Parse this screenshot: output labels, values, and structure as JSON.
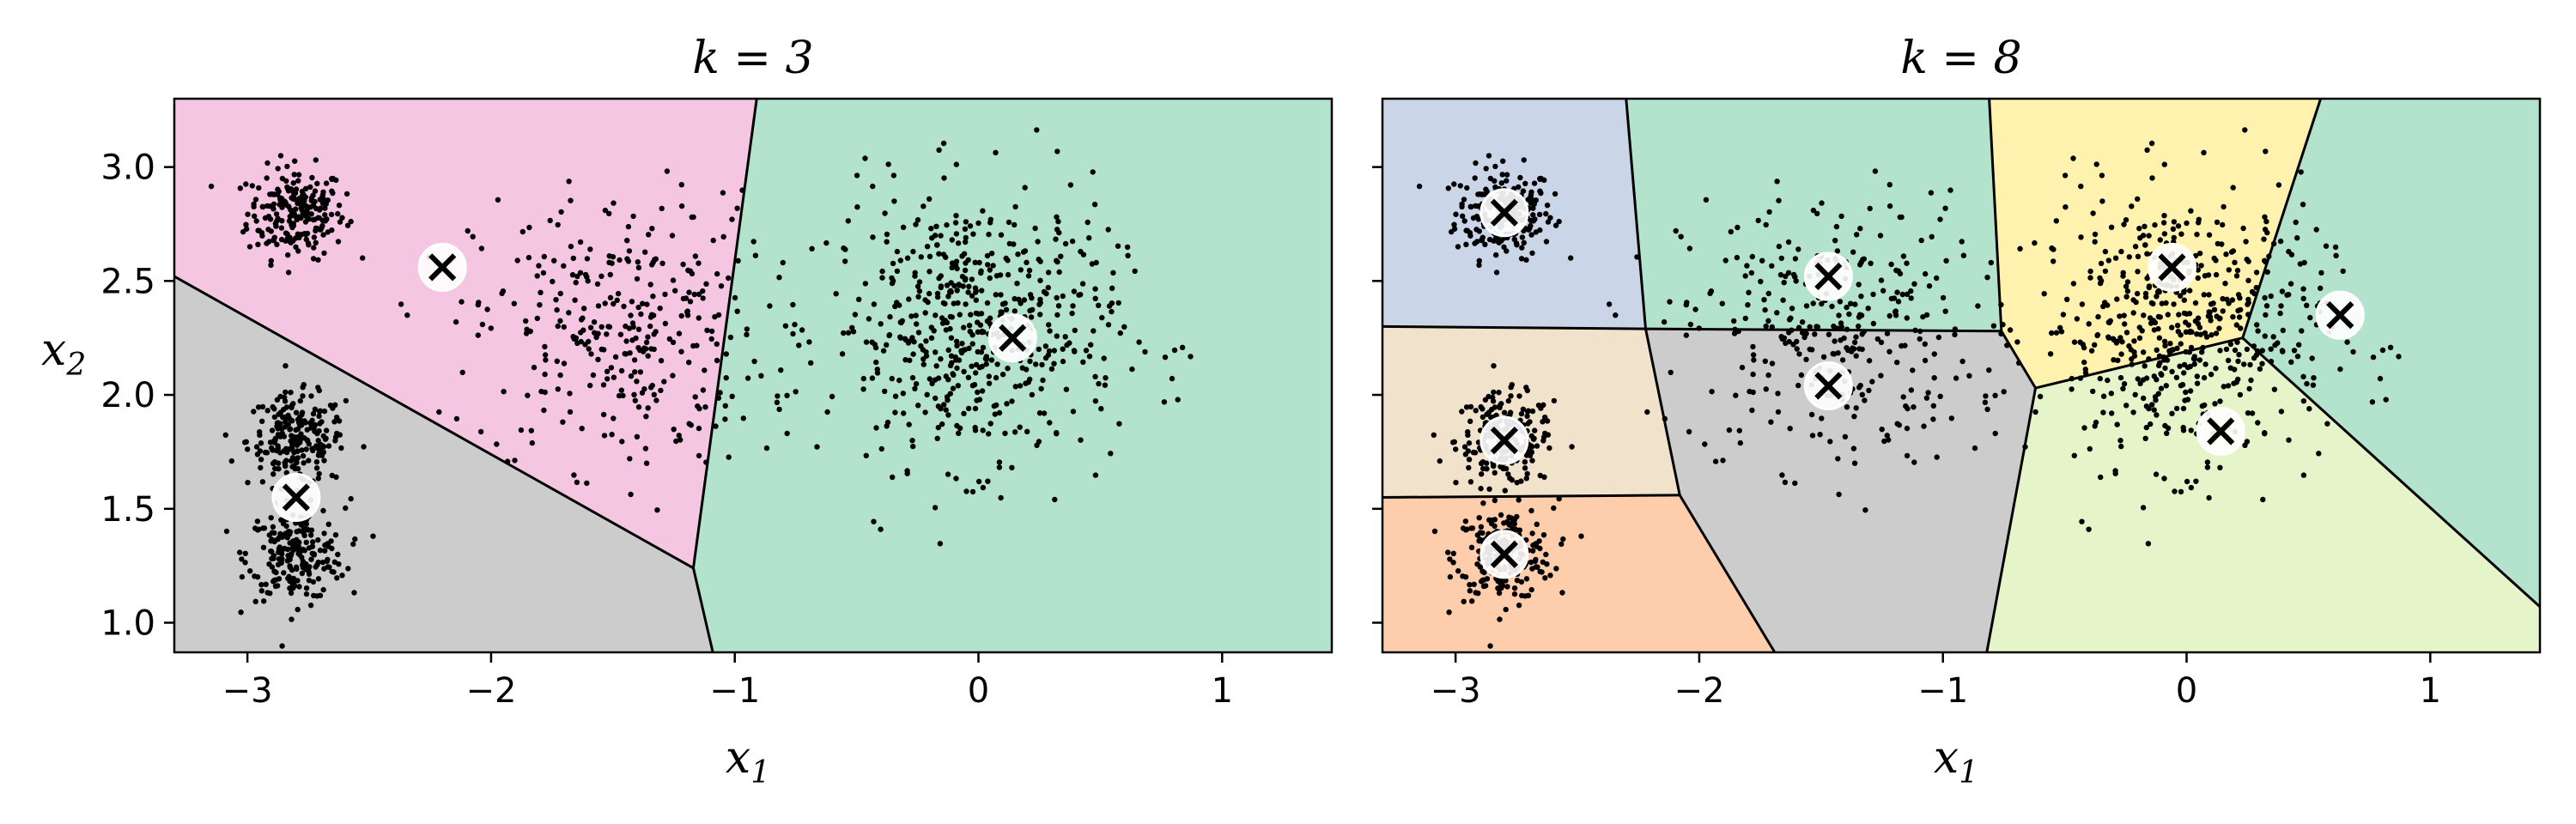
{
  "chart_data": [
    {
      "type": "scatter",
      "title": "k = 3",
      "xlabel": "x1",
      "ylabel": "x2",
      "xlim": [
        -3.3,
        1.45
      ],
      "ylim": [
        0.87,
        3.3
      ],
      "xticks": [
        -3,
        -2,
        -1,
        0,
        1
      ],
      "xtick_labels": [
        "−3",
        "−2",
        "−1",
        "0",
        "1"
      ],
      "yticks": [
        1.0,
        1.5,
        2.0,
        2.5,
        3.0
      ],
      "ytick_labels": [
        "1.0",
        "1.5",
        "2.0",
        "2.5",
        "3.0"
      ],
      "show_yticklabels": true,
      "regions": [
        {
          "color": "#f4c6e2",
          "polygon": [
            [
              -3.3,
              3.3
            ],
            [
              -0.91,
              3.3
            ],
            [
              -1.17,
              1.24
            ],
            [
              -3.3,
              2.52
            ]
          ]
        },
        {
          "color": "#cccccc",
          "polygon": [
            [
              -3.3,
              2.52
            ],
            [
              -1.17,
              1.24
            ],
            [
              -1.09,
              0.87
            ],
            [
              -3.3,
              0.87
            ]
          ]
        },
        {
          "color": "#b3e2cd",
          "polygon": [
            [
              -0.91,
              3.3
            ],
            [
              1.45,
              3.3
            ],
            [
              1.45,
              0.87
            ],
            [
              -1.09,
              0.87
            ],
            [
              -1.17,
              1.24
            ]
          ]
        }
      ],
      "boundaries": [
        [
          [
            -3.3,
            2.52
          ],
          [
            -1.17,
            1.24
          ]
        ],
        [
          [
            -0.91,
            3.3
          ],
          [
            -1.17,
            1.24
          ]
        ],
        [
          [
            -1.17,
            1.24
          ],
          [
            -1.09,
            0.87
          ]
        ]
      ],
      "centroids": [
        [
          -2.2,
          2.56
        ],
        [
          -2.8,
          1.55
        ],
        [
          0.14,
          2.25
        ]
      ],
      "clusters": [
        {
          "center": [
            -2.8,
            2.8
          ],
          "spread": [
            0.1,
            0.1
          ],
          "n": 220
        },
        {
          "center": [
            -2.8,
            1.8
          ],
          "spread": [
            0.1,
            0.1
          ],
          "n": 220
        },
        {
          "center": [
            -2.8,
            1.3
          ],
          "spread": [
            0.1,
            0.1
          ],
          "n": 220
        },
        {
          "center": [
            -1.47,
            2.28
          ],
          "spread": [
            0.3,
            0.3
          ],
          "n": 330
        },
        {
          "center": [
            -0.02,
            2.29
          ],
          "spread": [
            0.3,
            0.3
          ],
          "n": 560
        }
      ]
    },
    {
      "type": "scatter",
      "title": "k = 8",
      "xlabel": "x1",
      "ylabel": "",
      "xlim": [
        -3.3,
        1.45
      ],
      "ylim": [
        0.87,
        3.3
      ],
      "xticks": [
        -3,
        -2,
        -1,
        0,
        1
      ],
      "xtick_labels": [
        "−3",
        "−2",
        "−1",
        "0",
        "1"
      ],
      "yticks": [
        1.0,
        1.5,
        2.0,
        2.5,
        3.0
      ],
      "ytick_labels": [
        "",
        "",
        "",
        "",
        ""
      ],
      "show_yticklabels": false,
      "regions": [
        {
          "color": "#cbd5e8",
          "polygon": [
            [
              -3.3,
              3.3
            ],
            [
              -2.3,
              3.3
            ],
            [
              -2.22,
              2.29
            ],
            [
              -3.3,
              2.3
            ]
          ]
        },
        {
          "color": "#b3e2cd",
          "polygon": [
            [
              -2.3,
              3.3
            ],
            [
              -0.81,
              3.3
            ],
            [
              -0.76,
              2.28
            ],
            [
              -2.22,
              2.29
            ]
          ]
        },
        {
          "color": "#fff2ae",
          "polygon": [
            [
              -0.81,
              3.3
            ],
            [
              0.55,
              3.3
            ],
            [
              0.23,
              2.25
            ],
            [
              -0.62,
              2.03
            ],
            [
              -0.76,
              2.28
            ]
          ]
        },
        {
          "color": "#b3e2cd",
          "polygon": [
            [
              0.55,
              3.3
            ],
            [
              1.45,
              3.3
            ],
            [
              1.45,
              1.07
            ],
            [
              0.23,
              2.25
            ]
          ]
        },
        {
          "color": "#f1e2cc",
          "polygon": [
            [
              -3.3,
              2.3
            ],
            [
              -2.22,
              2.29
            ],
            [
              -2.08,
              1.56
            ],
            [
              -3.3,
              1.55
            ]
          ]
        },
        {
          "color": "#fdcdac",
          "polygon": [
            [
              -3.3,
              1.55
            ],
            [
              -2.08,
              1.56
            ],
            [
              -1.69,
              0.87
            ],
            [
              -3.3,
              0.87
            ]
          ]
        },
        {
          "color": "#cccccc",
          "polygon": [
            [
              -2.22,
              2.29
            ],
            [
              -0.76,
              2.28
            ],
            [
              -0.62,
              2.03
            ],
            [
              -0.82,
              0.87
            ],
            [
              -1.69,
              0.87
            ],
            [
              -2.08,
              1.56
            ]
          ]
        },
        {
          "color": "#e6f5c9",
          "polygon": [
            [
              -0.62,
              2.03
            ],
            [
              0.23,
              2.25
            ],
            [
              1.45,
              1.07
            ],
            [
              1.45,
              0.87
            ],
            [
              -0.82,
              0.87
            ]
          ]
        }
      ],
      "boundaries": [
        [
          [
            -3.3,
            2.3
          ],
          [
            -2.22,
            2.29
          ]
        ],
        [
          [
            -2.3,
            3.3
          ],
          [
            -2.22,
            2.29
          ]
        ],
        [
          [
            -2.22,
            2.29
          ],
          [
            -0.76,
            2.28
          ]
        ],
        [
          [
            -0.81,
            3.3
          ],
          [
            -0.76,
            2.28
          ]
        ],
        [
          [
            -0.76,
            2.28
          ],
          [
            -0.62,
            2.03
          ]
        ],
        [
          [
            -0.62,
            2.03
          ],
          [
            0.23,
            2.25
          ]
        ],
        [
          [
            0.55,
            3.3
          ],
          [
            0.23,
            2.25
          ]
        ],
        [
          [
            0.23,
            2.25
          ],
          [
            1.45,
            1.07
          ]
        ],
        [
          [
            -0.62,
            2.03
          ],
          [
            -0.82,
            0.87
          ]
        ],
        [
          [
            -2.22,
            2.29
          ],
          [
            -2.08,
            1.56
          ]
        ],
        [
          [
            -3.3,
            1.55
          ],
          [
            -2.08,
            1.56
          ]
        ],
        [
          [
            -2.08,
            1.56
          ],
          [
            -1.69,
            0.87
          ]
        ]
      ],
      "centroids": [
        [
          -2.8,
          2.8
        ],
        [
          -2.8,
          1.8
        ],
        [
          -2.8,
          1.3
        ],
        [
          -1.47,
          2.52
        ],
        [
          -1.47,
          2.04
        ],
        [
          -0.06,
          2.56
        ],
        [
          0.63,
          2.35
        ],
        [
          0.14,
          1.84
        ]
      ],
      "clusters": [
        {
          "center": [
            -2.8,
            2.8
          ],
          "spread": [
            0.1,
            0.1
          ],
          "n": 220
        },
        {
          "center": [
            -2.8,
            1.8
          ],
          "spread": [
            0.1,
            0.1
          ],
          "n": 220
        },
        {
          "center": [
            -2.8,
            1.3
          ],
          "spread": [
            0.1,
            0.1
          ],
          "n": 220
        },
        {
          "center": [
            -1.47,
            2.28
          ],
          "spread": [
            0.3,
            0.3
          ],
          "n": 330
        },
        {
          "center": [
            -0.02,
            2.29
          ],
          "spread": [
            0.3,
            0.3
          ],
          "n": 560
        }
      ]
    }
  ]
}
